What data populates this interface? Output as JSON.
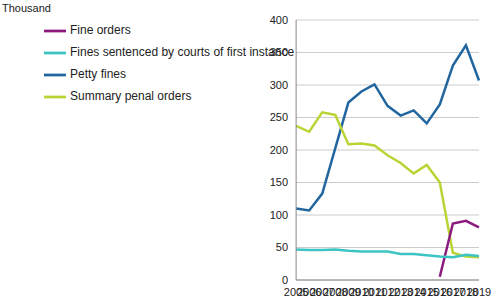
{
  "chart_data": {
    "type": "line",
    "y_label": "Thousand",
    "categories": [
      "2005",
      "2006",
      "2007",
      "2008",
      "2009",
      "2010",
      "2011",
      "2012",
      "2013",
      "2014",
      "2015",
      "2016",
      "2017",
      "2018",
      "2019"
    ],
    "series": [
      {
        "name": "Petty fines",
        "color": "#2266a0",
        "values": [
          110,
          107,
          133,
          203,
          273,
          290,
          301,
          268,
          253,
          261,
          241,
          270,
          330,
          361,
          307
        ]
      },
      {
        "name": "Summary penal orders",
        "color": "#b9d434",
        "values": [
          237,
          228,
          258,
          254,
          209,
          210,
          207,
          192,
          180,
          164,
          177,
          150,
          42,
          36,
          35
        ]
      },
      {
        "name": "Fine orders",
        "color": "#8c1a7e",
        "values": [
          null,
          null,
          null,
          null,
          null,
          null,
          null,
          null,
          null,
          null,
          null,
          5,
          87,
          91,
          81
        ]
      },
      {
        "name": "Fines sentenced by courts of first instance",
        "color": "#3cc3c3",
        "values": [
          47,
          46,
          46,
          47,
          45,
          44,
          44,
          44,
          40,
          40,
          38,
          36,
          35,
          39,
          37
        ]
      }
    ],
    "ylim": [
      0,
      400
    ],
    "yticks": [
      0,
      50,
      100,
      150,
      200,
      250,
      300,
      350,
      400
    ],
    "grid": true,
    "legend": "upper left"
  }
}
